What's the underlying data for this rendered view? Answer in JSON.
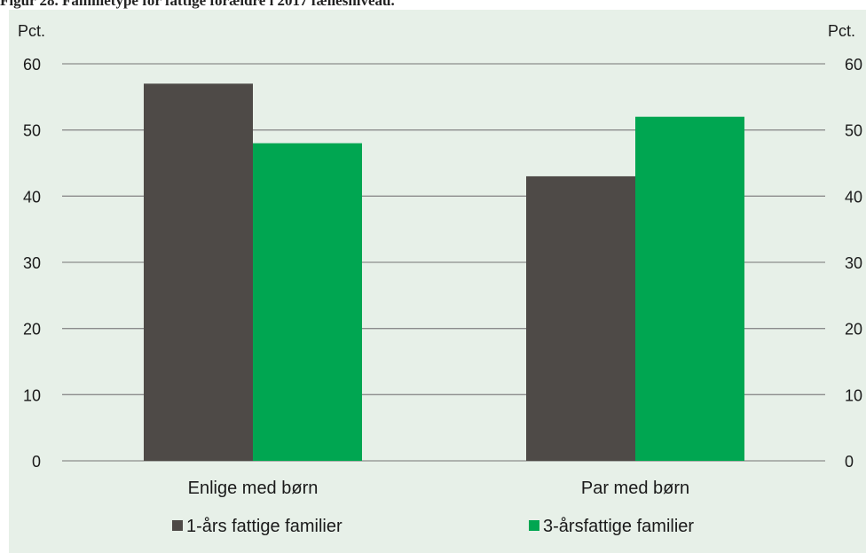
{
  "caption": "Figur 28. Familietype for fattige forældre i 2017 fællesniveau.",
  "colors": {
    "background": "#e7f0e8",
    "grid": "#8c8c8c",
    "series1": "#4e4a47",
    "series2": "#00a651"
  },
  "chart_data": {
    "type": "bar",
    "categories": [
      "Enlige med børn",
      "Par med børn"
    ],
    "series": [
      {
        "name": "1-års fattige familier",
        "values": [
          57,
          43
        ]
      },
      {
        "name": "3-årsfattige familier",
        "values": [
          48,
          52
        ]
      }
    ],
    "ylabel_left": "Pct.",
    "ylabel_right": "Pct.",
    "ylim": [
      0,
      60
    ],
    "yticks": [
      "0",
      "10",
      "20",
      "30",
      "40",
      "50",
      "60"
    ],
    "grid": true,
    "legend_position": "bottom"
  }
}
